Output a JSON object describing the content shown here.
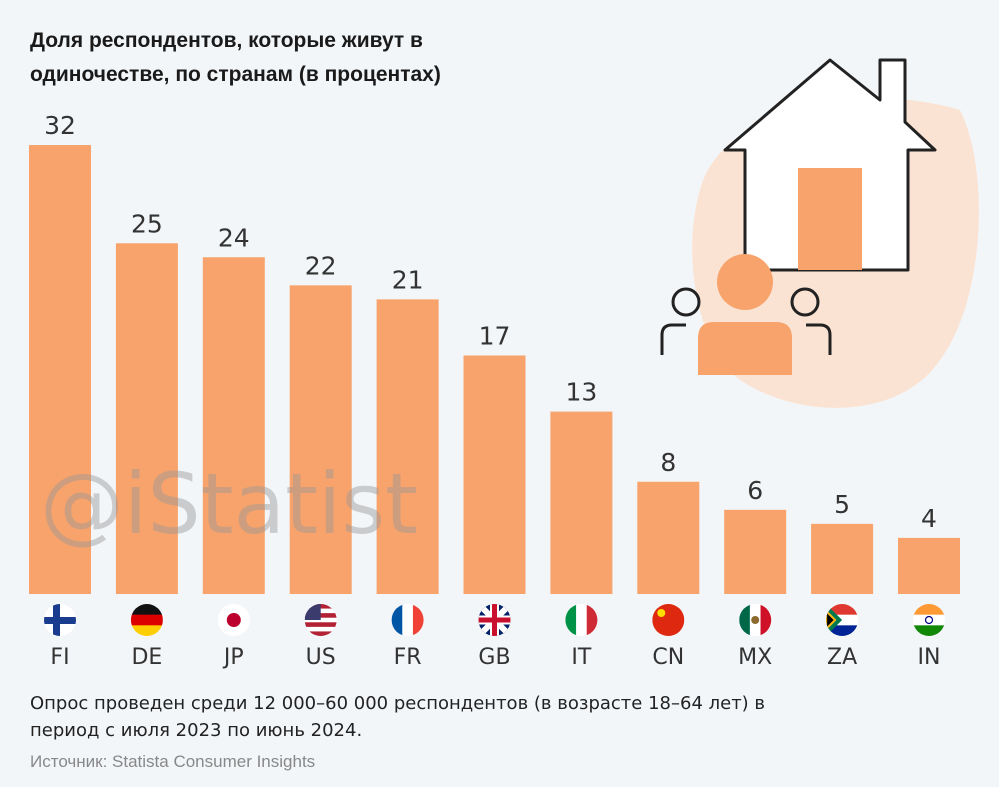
{
  "chart_data": {
    "type": "bar",
    "title": "Доля респондентов, которые живут в одиночестве, по странам (в процентах)",
    "categories": [
      "FI",
      "DE",
      "JP",
      "US",
      "FR",
      "GB",
      "IT",
      "CN",
      "MX",
      "ZA",
      "IN"
    ],
    "values": [
      32,
      25,
      24,
      22,
      21,
      17,
      13,
      8,
      6,
      5,
      4
    ],
    "color": "#f7a36b",
    "note": "Опрос проведен среди 12 000–60 000 респондентов (в возрасте 18–64 лет) в период с июля 2023 по июнь 2024.",
    "source": "Источник: Statista Consumer Insights",
    "watermark": "@iStatist"
  }
}
